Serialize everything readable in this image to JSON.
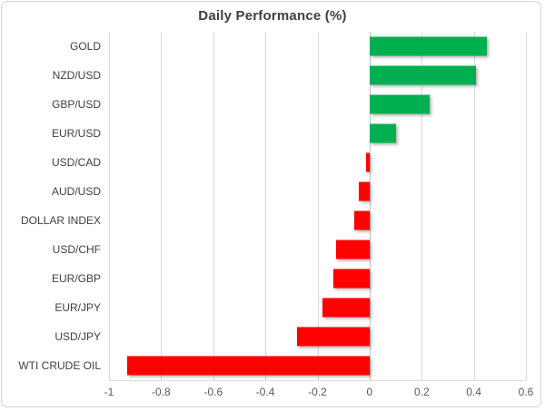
{
  "chart_data": {
    "type": "bar",
    "orientation": "horizontal",
    "title": "Daily Performance (%)",
    "categories": [
      "GOLD",
      "NZD/USD",
      "GBP/USD",
      "EUR/USD",
      "USD/CAD",
      "AUD/USD",
      "DOLLAR INDEX",
      "USD/CHF",
      "EUR/GBP",
      "EUR/JPY",
      "USD/JPY",
      "WTI CRUDE OIL"
    ],
    "values": [
      0.45,
      0.41,
      0.23,
      0.1,
      -0.015,
      -0.04,
      -0.06,
      -0.13,
      -0.14,
      -0.18,
      -0.28,
      -0.93
    ],
    "xlabel": "",
    "ylabel": "",
    "xlim": [
      -1,
      0.6
    ],
    "xticks": [
      -1,
      -0.8,
      -0.6,
      -0.4,
      -0.2,
      0,
      0.2,
      0.4,
      0.6
    ],
    "xtick_labels": [
      "-1",
      "-0.8",
      "-0.6",
      "-0.4",
      "-0.2",
      "0",
      "0.2",
      "0.4",
      "0.6"
    ],
    "grid": true,
    "legend": "none",
    "positive_color": "#00B050",
    "negative_color": "#FF0000"
  },
  "colors": {
    "gridline": "#d9d9d9",
    "zero_axis": "#bfbfbf",
    "frame_border": "#d7d7d7",
    "title_text": "#3f3f3f",
    "category_text": "#404040",
    "tick_text": "#595959",
    "background": "#ffffff"
  }
}
